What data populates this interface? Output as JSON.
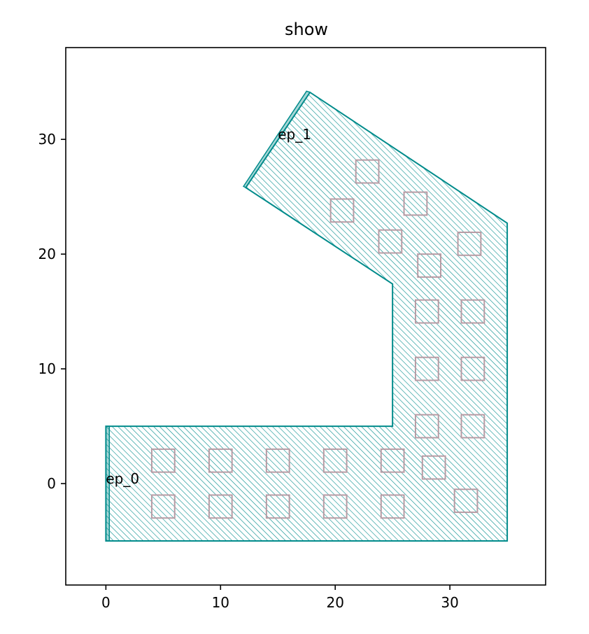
{
  "chart_data": {
    "type": "polygon",
    "title": "show",
    "xlim": [
      -3.5,
      38.35
    ],
    "ylim": [
      -8.84,
      38
    ],
    "xticks": [
      0,
      10,
      20,
      30
    ],
    "yticks": [
      0,
      10,
      20,
      30
    ],
    "color": "#008b8b",
    "hatch": true,
    "polygon": {
      "x": [
        0,
        35,
        35,
        17.8,
        12.2,
        25,
        25,
        0
      ],
      "y": [
        -5,
        -5,
        22.7,
        34.1,
        25.8,
        17.4,
        5,
        5
      ]
    },
    "ends": [
      {
        "label": "ep_0",
        "x": [
          0,
          0.3,
          0.3,
          0
        ],
        "y": [
          -5,
          -5,
          5,
          5
        ],
        "label_x": 0,
        "label_y": 0
      },
      {
        "label": "ep_1",
        "x": [
          12.2,
          17.8,
          17.5,
          12.0
        ],
        "y": [
          25.8,
          34.1,
          34.2,
          25.9
        ],
        "label_x": 15,
        "label_y": 30
      }
    ],
    "squares": {
      "color": "#b79ba4",
      "size": 2,
      "x": [
        5,
        10,
        15,
        20,
        25,
        5,
        10,
        15,
        20,
        25,
        28.6,
        31.4,
        28,
        32,
        28,
        32,
        28,
        32,
        28.2,
        31.7,
        24.8,
        20.6,
        22.8,
        27
      ],
      "y": [
        2,
        2,
        2,
        2,
        2,
        -2,
        -2,
        -2,
        -2,
        -2,
        1.4,
        -1.5,
        5,
        5,
        10,
        10,
        15,
        15,
        19,
        20.9,
        21.1,
        23.8,
        27.2,
        24.4
      ]
    }
  }
}
